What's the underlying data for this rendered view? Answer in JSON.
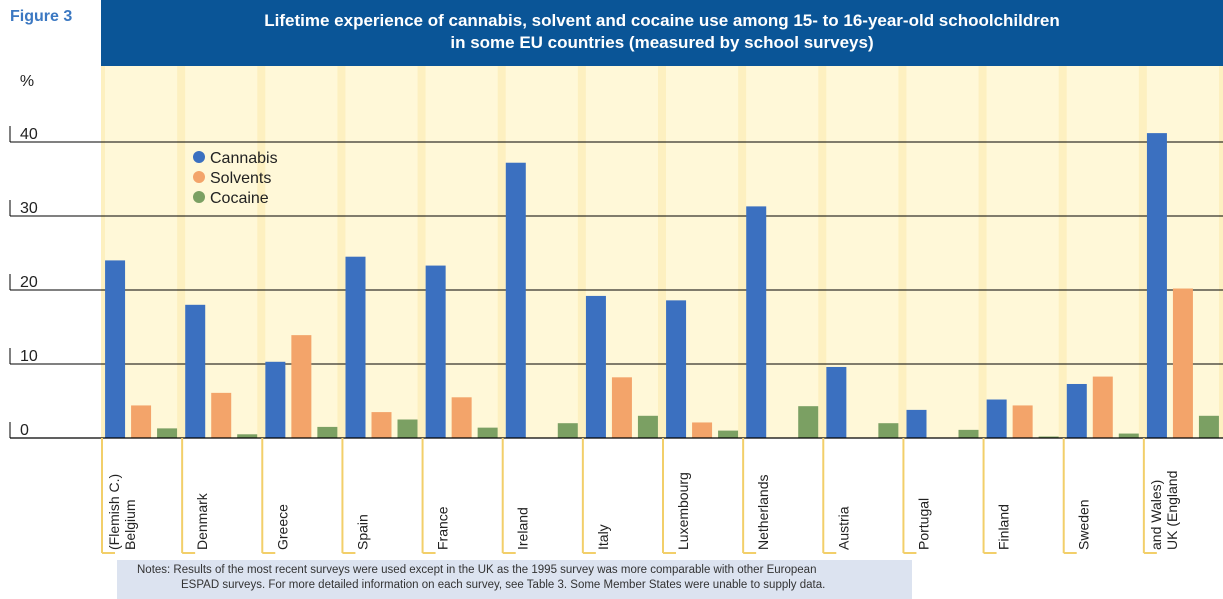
{
  "figure_label": "Figure 3",
  "title_line1": "Lifetime experience of cannabis, solvent and cocaine use among 15- to 16-year-old schoolchildren",
  "title_line2": "in some EU countries (measured by school surveys)",
  "colors": {
    "cannabis": "#3b70c0",
    "solvents": "#f3a46a",
    "cocaine": "#7ba063",
    "plot_bg": "#fdf0c0",
    "column_band": "#fff8d8",
    "title_bg": "#0a5597"
  },
  "chart_data": {
    "type": "bar",
    "ylabel": "%",
    "ylim": [
      0,
      40
    ],
    "y_ticks": [
      "0",
      "10",
      "20",
      "30",
      "40"
    ],
    "categories": [
      "Belgium\n(Flemish C.)",
      "Denmark",
      "Greece",
      "Spain",
      "France",
      "Ireland",
      "Italy",
      "Luxembourg",
      "Netherlands",
      "Austria",
      "Portugal",
      "Finland",
      "Sweden",
      "UK (England\nand Wales)"
    ],
    "legend": [
      "Cannabis",
      "Solvents",
      "Cocaine"
    ],
    "legend_position": "top-left",
    "series": [
      {
        "name": "Cannabis",
        "values": [
          24,
          18,
          10.3,
          24.5,
          23.3,
          37.2,
          19.2,
          18.6,
          31.3,
          9.6,
          3.8,
          5.2,
          7.3,
          41.2
        ]
      },
      {
        "name": "Solvents",
        "values": [
          4.4,
          6.1,
          13.9,
          3.5,
          5.5,
          null,
          8.2,
          2.1,
          null,
          null,
          null,
          4.4,
          8.3,
          20.2
        ]
      },
      {
        "name": "Cocaine",
        "values": [
          1.3,
          0.5,
          1.5,
          2.5,
          1.4,
          2.0,
          3.0,
          1.0,
          4.3,
          2.0,
          1.1,
          0.2,
          0.6,
          3.0
        ]
      }
    ]
  },
  "notes": {
    "line1": "Notes:  Results of  the most recent surveys were used except in the UK as the 1995 survey was more comparable with other European",
    "line2": "ESPAD surveys. For more detailed information on each survey, see Table 3. Some Member States were unable to supply data."
  }
}
